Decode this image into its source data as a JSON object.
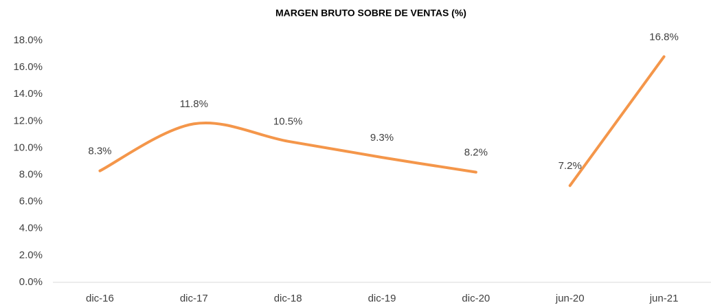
{
  "chart_data": {
    "type": "line",
    "title": "MARGEN BRUTO SOBRE DE VENTAS (%)",
    "categories": [
      "dic-16",
      "dic-17",
      "dic-18",
      "dic-19",
      "dic-20",
      "jun-20",
      "jun-21"
    ],
    "series": [
      {
        "color": "#f4964a",
        "values": [
          8.3,
          11.8,
          10.5,
          9.3,
          8.2,
          null,
          null
        ],
        "value_labels": [
          "8.3%",
          "11.8%",
          "10.5%",
          "9.3%",
          "8.2%",
          null,
          null
        ]
      },
      {
        "color": "#f4964a",
        "values": [
          null,
          null,
          null,
          null,
          null,
          7.2,
          16.8
        ],
        "value_labels": [
          null,
          null,
          null,
          null,
          null,
          "7.2%",
          "16.8%"
        ]
      }
    ],
    "ylim": [
      0,
      18
    ],
    "yticks": [
      {
        "value": 0,
        "label": "0.0%"
      },
      {
        "value": 2,
        "label": "2.0%"
      },
      {
        "value": 4,
        "label": "4.0%"
      },
      {
        "value": 6,
        "label": "6.0%"
      },
      {
        "value": 8,
        "label": "8.0%"
      },
      {
        "value": 10,
        "label": "10.0%"
      },
      {
        "value": 12,
        "label": "12.0%"
      },
      {
        "value": 14,
        "label": "14.0%"
      },
      {
        "value": 16,
        "label": "16.0%"
      },
      {
        "value": 18,
        "label": "18.0%"
      }
    ],
    "grid": false
  }
}
